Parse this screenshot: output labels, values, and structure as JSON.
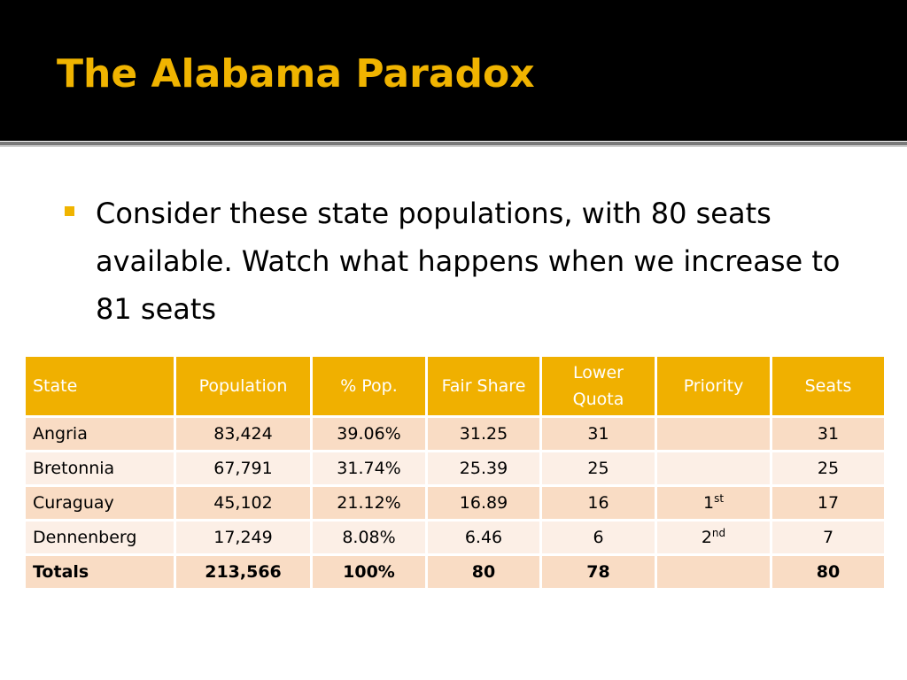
{
  "slide": {
    "title": "The Alabama Paradox",
    "bullet": "Consider these state populations, with 80 seats available.  Watch what happens when we increase to 81 seats"
  },
  "colors": {
    "accent": "#f0b400",
    "header_fill": "#f0b000",
    "row_dark": "#f9dcc4",
    "row_light": "#fcefe6"
  },
  "table": {
    "headers": [
      "State",
      "Population",
      "% Pop.",
      "Fair Share",
      "Lower Quota",
      "Priority",
      "Seats"
    ],
    "rows": [
      {
        "state": "Angria",
        "population": "83,424",
        "pct": "39.06%",
        "fair": "31.25",
        "lower": "31",
        "priority_num": "",
        "priority_sup": "",
        "seats": "31"
      },
      {
        "state": "Bretonnia",
        "population": "67,791",
        "pct": "31.74%",
        "fair": "25.39",
        "lower": "25",
        "priority_num": "",
        "priority_sup": "",
        "seats": "25"
      },
      {
        "state": "Curaguay",
        "population": "45,102",
        "pct": "21.12%",
        "fair": "16.89",
        "lower": "16",
        "priority_num": "1",
        "priority_sup": "st",
        "seats": "17"
      },
      {
        "state": "Dennenberg",
        "population": "17,249",
        "pct": "8.08%",
        "fair": "6.46",
        "lower": "6",
        "priority_num": "2",
        "priority_sup": "nd",
        "seats": "7"
      }
    ],
    "totals": {
      "state": "Totals",
      "population": "213,566",
      "pct": "100%",
      "fair": "80",
      "lower": "78",
      "priority_num": "",
      "priority_sup": "",
      "seats": "80"
    }
  }
}
